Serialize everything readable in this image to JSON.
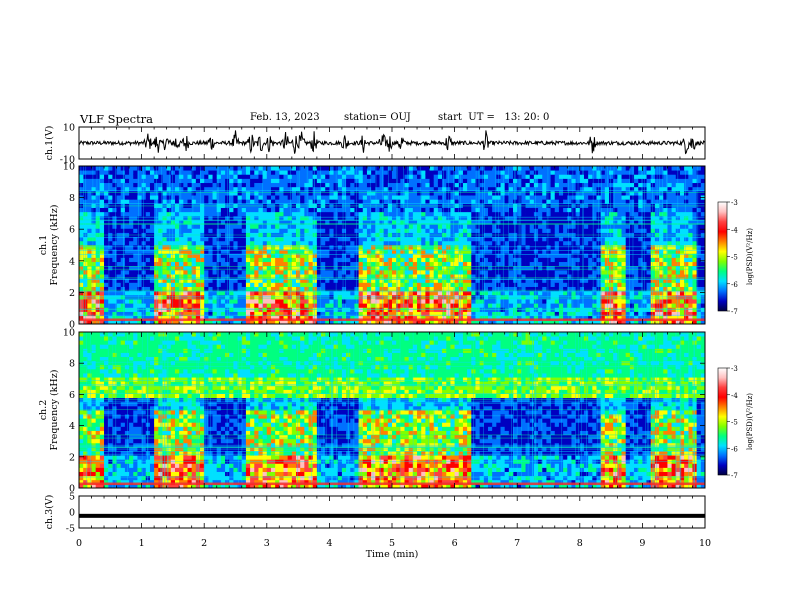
{
  "header": {
    "title": "VLF Spectra",
    "date": "Feb. 13, 2023",
    "station": "station= OUJ",
    "start": "start  UT =   13: 20: 0"
  },
  "colors": {
    "colormap": [
      "#000040",
      "#0000c0",
      "#0070ff",
      "#00e0ff",
      "#00ff80",
      "#80ff00",
      "#ffff00",
      "#ff8000",
      "#ff0000",
      "#ff4040",
      "#ffc0c0",
      "#ffffff"
    ],
    "frame": "#000000"
  },
  "chart_data": [
    {
      "type": "line",
      "panel": "ch1-waveform",
      "ylabel": "ch.1(V)",
      "ylim": [
        -10,
        10
      ],
      "yticks": [
        "10",
        "-10"
      ],
      "xlim": [
        0,
        10
      ],
      "bursts_min": [
        1.1,
        1.25,
        1.4,
        1.55,
        1.7,
        2.1,
        2.5,
        2.75,
        2.9,
        3.05,
        3.3,
        3.45,
        3.55,
        3.75,
        4.25,
        4.55,
        4.85,
        4.95,
        5.15,
        5.9,
        6.5,
        8.2,
        9.7,
        9.8
      ]
    },
    {
      "type": "heatmap",
      "panel": "ch1-spectrogram",
      "ylabel": "ch.1",
      "ylabel2": "Frequency (kHz)",
      "yticks": [
        "0",
        "2",
        "4",
        "6",
        "8",
        "10"
      ],
      "ylim": [
        0,
        10
      ],
      "xlim": [
        0,
        10
      ],
      "quiet_intervals_min": [
        [
          0.42,
          1.18
        ],
        [
          2.0,
          2.65
        ],
        [
          3.8,
          4.45
        ],
        [
          6.3,
          8.3
        ],
        [
          8.75,
          9.15
        ],
        [
          9.85,
          10
        ]
      ],
      "colorbar": {
        "label": "log(PSD)(V²/Hz)",
        "ticks": [
          "-3",
          "-4",
          "-5",
          "-6",
          "-7"
        ],
        "range": [
          -7,
          -3
        ]
      }
    },
    {
      "type": "heatmap",
      "panel": "ch2-spectrogram",
      "ylabel": "ch.2",
      "ylabel2": "Frequency (kHz)",
      "yticks": [
        "0",
        "2",
        "4",
        "6",
        "8",
        "10"
      ],
      "ylim": [
        0,
        10
      ],
      "xlim": [
        0,
        10
      ],
      "quiet_intervals_min": [
        [
          0.42,
          1.18
        ],
        [
          2.0,
          2.65
        ],
        [
          3.8,
          4.45
        ],
        [
          6.3,
          8.3
        ],
        [
          8.75,
          9.15
        ],
        [
          9.85,
          10
        ]
      ],
      "colorbar": {
        "label": "log(PSD)(V²/Hz)",
        "ticks": [
          "-3",
          "-4",
          "-5",
          "-6",
          "-7"
        ],
        "range": [
          -7,
          -3
        ]
      }
    },
    {
      "type": "line",
      "panel": "ch3-trace",
      "ylabel": "ch.3(V)",
      "yticks": [
        "5",
        "0",
        "-5"
      ],
      "ylim": [
        -5,
        5
      ],
      "xlim": [
        0,
        10
      ],
      "value": -1.2,
      "xlabel": "Time (min)",
      "xticks": [
        "0",
        "1",
        "2",
        "3",
        "4",
        "5",
        "6",
        "7",
        "8",
        "9",
        "10"
      ]
    }
  ]
}
